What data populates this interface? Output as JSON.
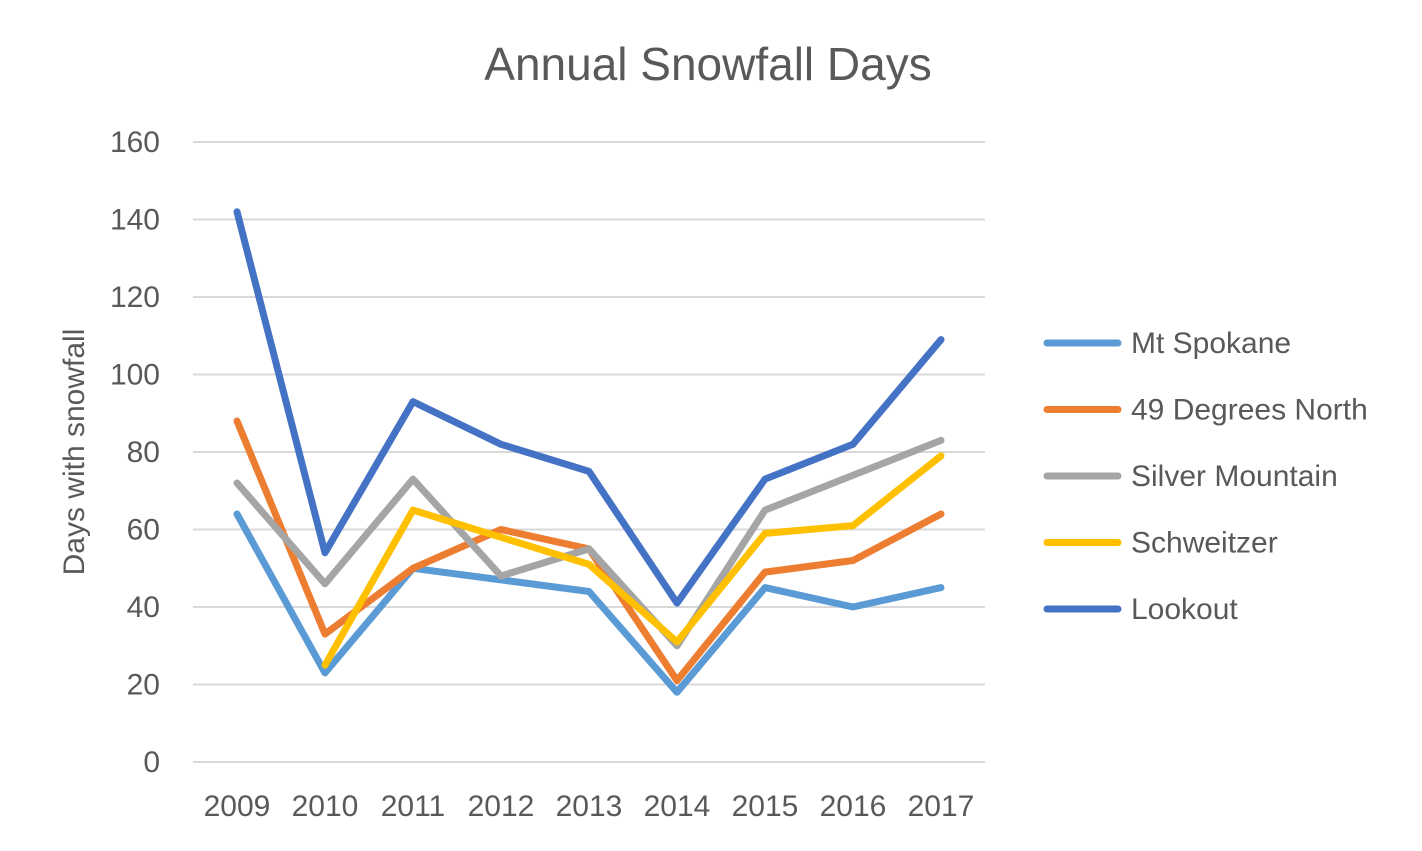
{
  "chart_data": {
    "type": "line",
    "title": "Annual Snowfall Days",
    "xlabel": "",
    "ylabel": "Days with snowfall",
    "ylim": [
      0,
      160
    ],
    "yticks": [
      0,
      20,
      40,
      60,
      80,
      100,
      120,
      140,
      160
    ],
    "grid": true,
    "legend_position": "right",
    "categories": [
      "2009",
      "2010",
      "2011",
      "2012",
      "2013",
      "2014",
      "2015",
      "2016",
      "2017"
    ],
    "series": [
      {
        "name": "Mt Spokane",
        "color": "#5b9bd5",
        "values": [
          64,
          23,
          50,
          47,
          44,
          18,
          45,
          40,
          45
        ]
      },
      {
        "name": "49 Degrees North",
        "color": "#ed7d31",
        "values": [
          88,
          33,
          50,
          60,
          55,
          21,
          49,
          52,
          64
        ]
      },
      {
        "name": "Silver Mountain",
        "color": "#a5a5a5",
        "values": [
          72,
          46,
          73,
          48,
          55,
          30,
          65,
          74,
          83
        ]
      },
      {
        "name": "Schweitzer",
        "color": "#ffc000",
        "values": [
          null,
          25,
          65,
          58,
          51,
          31,
          59,
          61,
          79
        ]
      },
      {
        "name": "Lookout",
        "color": "#4472c4",
        "values": [
          142,
          54,
          93,
          82,
          75,
          41,
          73,
          82,
          109
        ]
      }
    ]
  }
}
